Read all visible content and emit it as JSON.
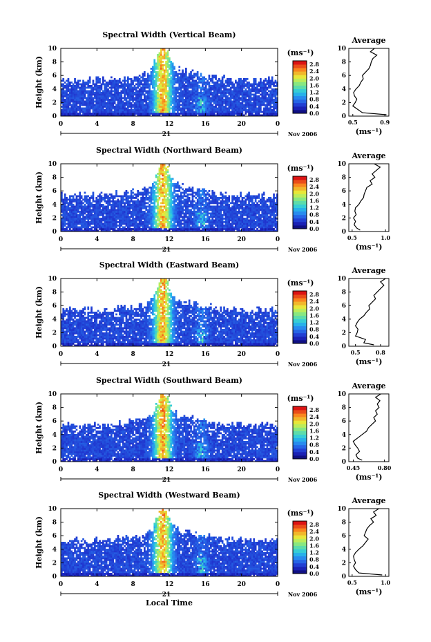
{
  "chart_data": [
    {
      "type": "heatmap",
      "title": "Spectral Width (Vertical Beam)",
      "ylabel": "Height (km)",
      "xticks": [
        "0",
        "4",
        "8",
        "12",
        "16",
        "20",
        "0"
      ],
      "day_label": "21",
      "month_label": "Nov 2006",
      "xlim": [
        0,
        24
      ],
      "ylim": [
        0,
        10
      ],
      "yticks": [
        "0",
        "2",
        "4",
        "6",
        "8",
        "10"
      ],
      "colorbar": {
        "unit": "(ms⁻¹)",
        "ticks": [
          "0.0",
          "0.4",
          "0.8",
          "1.2",
          "1.6",
          "2.0",
          "2.4",
          "2.8"
        ],
        "range": [
          0,
          3.0
        ]
      },
      "average": {
        "title": "Average",
        "xlabel": "(ms⁻¹)",
        "xticks": [
          "0.5",
          "0.9"
        ],
        "xlim": [
          0.45,
          0.95
        ],
        "ylim": [
          0,
          10
        ],
        "yticks": [
          "0",
          "2",
          "4",
          "6",
          "8",
          "10"
        ],
        "heights": [
          0.2,
          0.5,
          1.0,
          1.5,
          2.0,
          2.5,
          3.0,
          3.5,
          4.0,
          4.5,
          5.0,
          5.5,
          6.0,
          6.5,
          7.0,
          7.5,
          8.0,
          8.5,
          9.0,
          9.5,
          10.0
        ],
        "values": [
          0.92,
          0.62,
          0.56,
          0.5,
          0.53,
          0.55,
          0.52,
          0.51,
          0.54,
          0.58,
          0.6,
          0.63,
          0.62,
          0.66,
          0.7,
          0.72,
          0.73,
          0.75,
          0.8,
          0.72,
          0.77
        ]
      }
    },
    {
      "type": "heatmap",
      "title": "Spectral Width (Northward Beam)",
      "ylabel": "Height (km)",
      "xticks": [
        "0",
        "4",
        "8",
        "12",
        "16",
        "20",
        "0"
      ],
      "day_label": "21",
      "month_label": "Nov 2006",
      "xlim": [
        0,
        24
      ],
      "ylim": [
        0,
        10
      ],
      "yticks": [
        "0",
        "2",
        "4",
        "6",
        "8",
        "10"
      ],
      "colorbar": {
        "unit": "(ms⁻¹)",
        "ticks": [
          "0.0",
          "0.4",
          "0.8",
          "1.2",
          "1.6",
          "2.0",
          "2.4",
          "2.8"
        ],
        "range": [
          0,
          3.0
        ]
      },
      "average": {
        "title": "Average",
        "xlabel": "(ms⁻¹)",
        "xticks": [
          "0.5",
          "1.0"
        ],
        "xlim": [
          0.45,
          1.05
        ],
        "ylim": [
          0,
          10
        ],
        "yticks": [
          "0",
          "2",
          "4",
          "6",
          "8",
          "10"
        ],
        "heights": [
          0.2,
          0.5,
          1.0,
          1.5,
          2.0,
          2.5,
          3.0,
          3.5,
          4.0,
          4.5,
          5.0,
          5.5,
          6.0,
          6.5,
          7.0,
          7.5,
          8.0,
          8.5,
          9.0,
          9.5,
          10.0
        ],
        "values": [
          0.62,
          0.57,
          0.53,
          0.55,
          0.52,
          0.56,
          0.54,
          0.55,
          0.6,
          0.63,
          0.67,
          0.68,
          0.7,
          0.72,
          0.8,
          0.77,
          0.84,
          0.8,
          0.86,
          0.92,
          0.83
        ]
      }
    },
    {
      "type": "heatmap",
      "title": "Spectral Width (Eastward Beam)",
      "ylabel": "Height (km)",
      "xticks": [
        "0",
        "4",
        "8",
        "12",
        "16",
        "20",
        "0"
      ],
      "day_label": "21",
      "month_label": "Nov 2006",
      "xlim": [
        0,
        24
      ],
      "ylim": [
        0,
        10
      ],
      "yticks": [
        "0",
        "2",
        "4",
        "6",
        "8",
        "10"
      ],
      "colorbar": {
        "unit": "(ms⁻¹)",
        "ticks": [
          "0.0",
          "0.4",
          "0.8",
          "1.2",
          "1.6",
          "2.0",
          "2.4",
          "2.8"
        ],
        "range": [
          0,
          3.0
        ]
      },
      "average": {
        "title": "Average",
        "xlabel": "(ms⁻¹)",
        "xticks": [
          "0.5",
          "0.8"
        ],
        "xlim": [
          0.42,
          0.9
        ],
        "ylim": [
          0,
          10
        ],
        "yticks": [
          "0",
          "2",
          "4",
          "6",
          "8",
          "10"
        ],
        "heights": [
          0.2,
          0.5,
          1.0,
          1.5,
          2.0,
          2.5,
          3.0,
          3.5,
          4.0,
          4.5,
          5.0,
          5.5,
          6.0,
          6.5,
          7.0,
          7.5,
          8.0,
          8.5,
          9.0,
          9.5,
          10.0
        ],
        "values": [
          0.72,
          0.6,
          0.62,
          0.5,
          0.52,
          0.53,
          0.5,
          0.52,
          0.55,
          0.6,
          0.63,
          0.67,
          0.66,
          0.7,
          0.74,
          0.72,
          0.76,
          0.8,
          0.84,
          0.8,
          0.86
        ]
      }
    },
    {
      "type": "heatmap",
      "title": "Spectral Width (Southward Beam)",
      "ylabel": "Height (km)",
      "xticks": [
        "0",
        "4",
        "8",
        "12",
        "16",
        "20",
        "0"
      ],
      "day_label": "21",
      "month_label": "Nov 2006",
      "xlim": [
        0,
        24
      ],
      "ylim": [
        0,
        10
      ],
      "yticks": [
        "0",
        "2",
        "4",
        "6",
        "8",
        "10"
      ],
      "colorbar": {
        "unit": "(ms⁻¹)",
        "ticks": [
          "0.0",
          "0.4",
          "0.8",
          "1.2",
          "1.6",
          "2.0",
          "2.4",
          "2.8"
        ],
        "range": [
          0,
          3.0
        ]
      },
      "average": {
        "title": "Average",
        "xlabel": "(ms⁻¹)",
        "xticks": [
          "0.45",
          "0.80"
        ],
        "xlim": [
          0.4,
          0.85
        ],
        "ylim": [
          0,
          10
        ],
        "yticks": [
          "0",
          "2",
          "4",
          "6",
          "8",
          "10"
        ],
        "heights": [
          0.2,
          0.5,
          1.0,
          1.5,
          2.0,
          2.5,
          3.0,
          3.5,
          4.0,
          4.5,
          5.0,
          5.5,
          6.0,
          6.5,
          7.0,
          7.5,
          8.0,
          8.5,
          9.0,
          9.5,
          10.0
        ],
        "values": [
          0.55,
          0.5,
          0.48,
          0.52,
          0.5,
          0.47,
          0.45,
          0.5,
          0.55,
          0.6,
          0.62,
          0.66,
          0.7,
          0.68,
          0.72,
          0.7,
          0.74,
          0.72,
          0.75,
          0.7,
          0.76
        ]
      }
    },
    {
      "type": "heatmap",
      "title": "Spectral Width (Westward Beam)",
      "ylabel": "Height (km)",
      "xticks": [
        "0",
        "4",
        "8",
        "12",
        "16",
        "20",
        "0"
      ],
      "day_label": "21",
      "month_label": "Nov 2006",
      "xaxis_title": "Local Time",
      "xlim": [
        0,
        24
      ],
      "ylim": [
        0,
        10
      ],
      "yticks": [
        "0",
        "2",
        "4",
        "6",
        "8",
        "10"
      ],
      "colorbar": {
        "unit": "(ms⁻¹)",
        "ticks": [
          "0.0",
          "0.4",
          "0.8",
          "1.2",
          "1.6",
          "2.0",
          "2.4",
          "2.8"
        ],
        "range": [
          0,
          3.0
        ]
      },
      "average": {
        "title": "Average",
        "xlabel": "(ms⁻¹)",
        "xticks": [
          "0.5",
          "1.0"
        ],
        "xlim": [
          0.45,
          1.05
        ],
        "ylim": [
          0,
          10
        ],
        "yticks": [
          "0",
          "2",
          "4",
          "6",
          "8",
          "10"
        ],
        "heights": [
          0.2,
          0.5,
          1.0,
          1.5,
          2.0,
          2.5,
          3.0,
          3.5,
          4.0,
          4.5,
          5.0,
          5.5,
          6.0,
          6.5,
          7.0,
          7.5,
          8.0,
          8.5,
          9.0,
          9.5,
          10.0
        ],
        "values": [
          0.95,
          0.6,
          0.55,
          0.52,
          0.55,
          0.53,
          0.52,
          0.55,
          0.6,
          0.66,
          0.7,
          0.74,
          0.68,
          0.7,
          0.72,
          0.76,
          0.82,
          0.78,
          0.86,
          0.82,
          0.9
        ]
      }
    }
  ]
}
